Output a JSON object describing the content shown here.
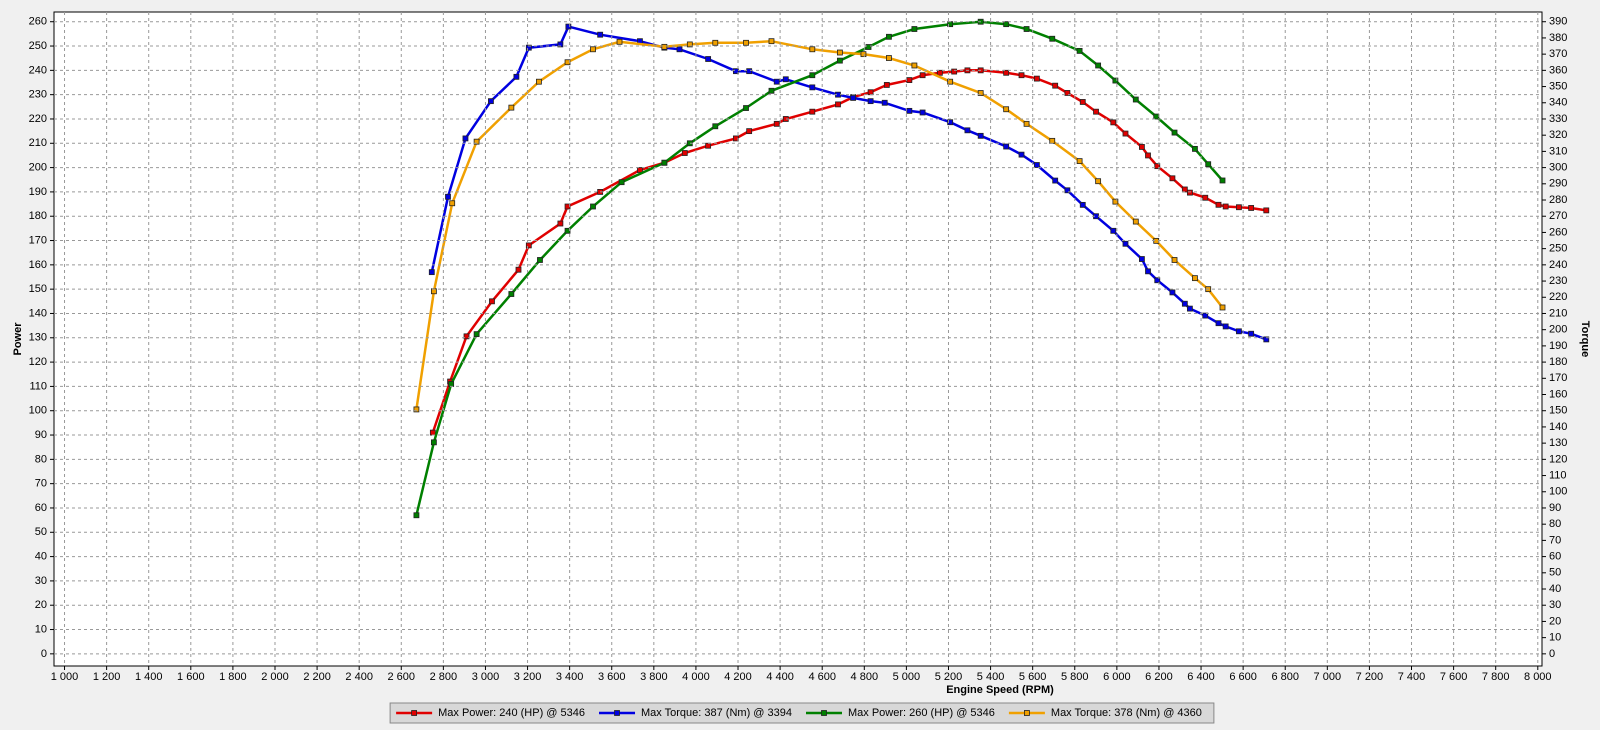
{
  "chart_data": {
    "type": "line",
    "x_label": "Engine Speed (RPM)",
    "y_label": "Power",
    "y2_label": "Torque",
    "y_label_color": "#d00000",
    "y2_label_color": "#0000c0",
    "grid": true,
    "legend": "bottom",
    "marker": "square",
    "xlim": [
      950,
      8020
    ],
    "xticks": [
      {
        "value": 1000,
        "label": "1 000"
      },
      {
        "value": 1200,
        "label": "1 200"
      },
      {
        "value": 1400,
        "label": "1 400"
      },
      {
        "value": 1600,
        "label": "1 600"
      },
      {
        "value": 1800,
        "label": "1 800"
      },
      {
        "value": 2000,
        "label": "2 000"
      },
      {
        "value": 2200,
        "label": "2 200"
      },
      {
        "value": 2400,
        "label": "2 400"
      },
      {
        "value": 2600,
        "label": "2 600"
      },
      {
        "value": 2800,
        "label": "2 800"
      },
      {
        "value": 3000,
        "label": "3 000"
      },
      {
        "value": 3200,
        "label": "3 200"
      },
      {
        "value": 3400,
        "label": "3 400"
      },
      {
        "value": 3600,
        "label": "3 600"
      },
      {
        "value": 3800,
        "label": "3 800"
      },
      {
        "value": 4000,
        "label": "4 000"
      },
      {
        "value": 4200,
        "label": "4 200"
      },
      {
        "value": 4400,
        "label": "4 400"
      },
      {
        "value": 4600,
        "label": "4 600"
      },
      {
        "value": 4800,
        "label": "4 800"
      },
      {
        "value": 5000,
        "label": "5 000"
      },
      {
        "value": 5200,
        "label": "5 200"
      },
      {
        "value": 5400,
        "label": "5 400"
      },
      {
        "value": 5600,
        "label": "5 600"
      },
      {
        "value": 5800,
        "label": "5 800"
      },
      {
        "value": 6000,
        "label": "6 000"
      },
      {
        "value": 6200,
        "label": "6 200"
      },
      {
        "value": 6400,
        "label": "6 400"
      },
      {
        "value": 6600,
        "label": "6 600"
      },
      {
        "value": 6800,
        "label": "6 800"
      },
      {
        "value": 7000,
        "label": "7 000"
      },
      {
        "value": 7200,
        "label": "7 200"
      },
      {
        "value": 7400,
        "label": "7 400"
      },
      {
        "value": 7600,
        "label": "7 600"
      },
      {
        "value": 7800,
        "label": "7 800"
      },
      {
        "value": 8000,
        "label": "8 000"
      }
    ],
    "ylim": [
      -5,
      264
    ],
    "yticks": [
      0,
      10,
      20,
      30,
      40,
      50,
      60,
      70,
      80,
      90,
      100,
      110,
      120,
      130,
      140,
      150,
      160,
      170,
      180,
      190,
      200,
      210,
      220,
      230,
      240,
      250,
      260
    ],
    "y2lim": [
      -7.5,
      396
    ],
    "y2ticks": [
      0,
      10,
      20,
      30,
      40,
      50,
      60,
      70,
      80,
      90,
      100,
      110,
      120,
      130,
      140,
      150,
      160,
      170,
      180,
      190,
      200,
      210,
      220,
      230,
      240,
      250,
      260,
      270,
      280,
      290,
      300,
      310,
      320,
      330,
      340,
      350,
      360,
      370,
      380,
      390
    ],
    "series": [
      {
        "name": "Max Power: 240 (HP) @ 5346",
        "color": "#e00000",
        "axis": "y",
        "x": [
          2750,
          2832,
          2910,
          3031,
          3157,
          3206,
          3356,
          3390,
          3545,
          3734,
          3850,
          3947,
          4058,
          4190,
          4253,
          4384,
          4427,
          4553,
          4675,
          4747,
          4830,
          4907,
          5014,
          5077,
          5159,
          5227,
          5290,
          5353,
          5474,
          5547,
          5620,
          5707,
          5765,
          5838,
          5901,
          5983,
          6041,
          6119,
          6148,
          6192,
          6264,
          6323,
          6347,
          6420,
          6483,
          6517,
          6580,
          6638,
          6710
        ],
        "values": [
          91,
          112,
          130.6,
          145,
          158,
          168,
          177,
          184,
          190,
          199,
          202,
          206,
          209,
          212,
          215,
          218,
          220,
          223,
          226,
          229,
          231,
          234,
          236,
          238,
          239,
          239.5,
          240,
          240,
          239,
          238,
          236.6,
          233.7,
          230.7,
          227,
          223,
          218.6,
          214,
          208.5,
          205,
          200.6,
          195.6,
          191,
          189.7,
          187.6,
          184.7,
          184,
          183.7,
          183.4,
          182.4
        ]
      },
      {
        "name": "Max Torque: 387 (Nm) @ 3394",
        "color": "#0000e0",
        "axis": "y2",
        "x": [
          2745,
          2822,
          2905,
          3026,
          3147,
          3206,
          3356,
          3394,
          3545,
          3734,
          3850,
          3922,
          4058,
          4190,
          4253,
          4384,
          4427,
          4553,
          4675,
          4747,
          4830,
          4897,
          5014,
          5077,
          5208,
          5290,
          5353,
          5474,
          5547,
          5620,
          5707,
          5765,
          5838,
          5901,
          5983,
          6041,
          6119,
          6148,
          6192,
          6264,
          6323,
          6347,
          6420,
          6483,
          6517,
          6580,
          6638,
          6710
        ],
        "values": [
          235.5,
          282,
          318,
          341,
          356,
          374,
          376,
          387,
          382,
          378,
          374,
          373,
          367,
          359.5,
          359.5,
          353,
          354.5,
          349.5,
          345,
          343,
          341,
          340,
          335,
          334,
          328,
          323,
          319.6,
          313,
          308,
          301.6,
          292,
          286,
          277,
          270,
          261,
          253,
          243.6,
          236,
          230.5,
          223,
          216,
          213,
          208.7,
          204,
          202,
          199,
          197.5,
          194
        ]
      },
      {
        "name": "Max Power: 260 (HP) @ 5346",
        "color": "#008000",
        "axis": "y",
        "x": [
          2672,
          2755,
          2837,
          2958,
          3123,
          3259,
          3390,
          3511,
          3647,
          3850,
          3971,
          4092,
          4238,
          4359,
          4553,
          4684,
          4820,
          4917,
          5038,
          5208,
          5353,
          5474,
          5571,
          5693,
          5823,
          5911,
          5993,
          6090,
          6187,
          6274,
          6371,
          6434,
          6502
        ],
        "values": [
          57,
          87,
          111,
          131.5,
          148,
          162,
          174,
          184,
          194,
          202,
          210,
          217,
          224.5,
          231.6,
          238,
          244,
          249.6,
          253.8,
          257,
          259,
          260,
          259,
          257,
          253,
          248,
          242,
          235.8,
          228,
          221,
          214.4,
          207.7,
          201.4,
          194.7
        ]
      },
      {
        "name": "Max Torque: 378 (Nm) @ 4360",
        "color": "#f0a000",
        "axis": "y2",
        "x": [
          2672,
          2755,
          2842,
          2958,
          3123,
          3254,
          3390,
          3511,
          3637,
          3850,
          3971,
          4092,
          4238,
          4359,
          4553,
          4684,
          4796,
          4917,
          5038,
          5208,
          5353,
          5474,
          5571,
          5693,
          5823,
          5911,
          5993,
          6090,
          6187,
          6274,
          6371,
          6434,
          6502
        ],
        "values": [
          150.8,
          223.7,
          278,
          316,
          337,
          353,
          365,
          373,
          377.6,
          374.5,
          376,
          377,
          377,
          378,
          373,
          371,
          370,
          367.6,
          363,
          353,
          346,
          336,
          327,
          316.5,
          304,
          291.6,
          279,
          266.7,
          254.8,
          243,
          231.8,
          225,
          213.7
        ]
      }
    ]
  }
}
